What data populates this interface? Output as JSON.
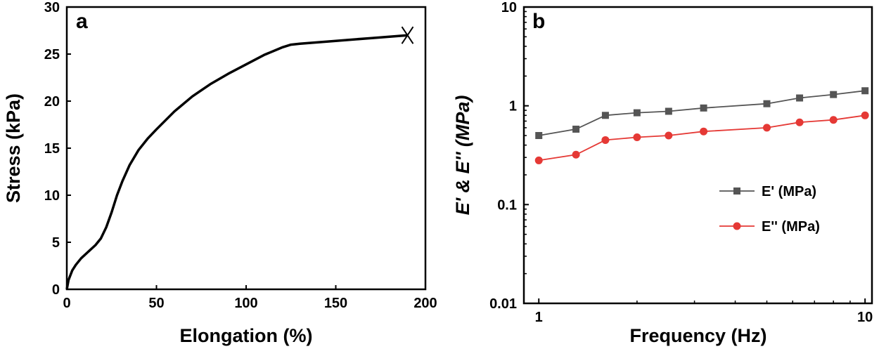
{
  "chart_data": [
    {
      "type": "line",
      "panel_label": "a",
      "xlabel": "Elongation (%)",
      "ylabel": "Stress (kPa)",
      "xlim": [
        0,
        200
      ],
      "ylim": [
        0,
        30
      ],
      "xticks": [
        0,
        50,
        100,
        150,
        200
      ],
      "yticks": [
        0,
        5,
        10,
        15,
        20,
        25,
        30
      ],
      "grid": false,
      "line_color": "#000000",
      "end_marker": "X",
      "series": [
        {
          "x": [
            0,
            1,
            3,
            5,
            8,
            12,
            16,
            19,
            22,
            25,
            28,
            31,
            35,
            40,
            45,
            50,
            60,
            70,
            80,
            90,
            100,
            110,
            120,
            125,
            130,
            150,
            170,
            190
          ],
          "y": [
            0,
            1.0,
            2.0,
            2.6,
            3.3,
            4.0,
            4.7,
            5.4,
            6.6,
            8.2,
            10.0,
            11.5,
            13.2,
            14.8,
            16.0,
            17.0,
            18.9,
            20.5,
            21.8,
            22.9,
            23.9,
            24.9,
            25.7,
            26.0,
            26.1,
            26.4,
            26.7,
            27.0
          ]
        }
      ]
    },
    {
      "type": "line",
      "panel_label": "b",
      "xlabel": "Frequency (Hz)",
      "ylabel": "E' & E'' (MPa)",
      "xscale": "log",
      "yscale": "log",
      "xlim": [
        0.9,
        10.5
      ],
      "ylim": [
        0.01,
        10
      ],
      "xticks": [
        1,
        10
      ],
      "yticks": [
        0.01,
        0.1,
        1,
        10
      ],
      "grid": false,
      "legend_position": "center-right",
      "series": [
        {
          "name": "E' (MPa)",
          "color": "#555555",
          "marker": "square",
          "x": [
            1,
            1.3,
            1.6,
            2,
            2.5,
            3.2,
            5,
            6.3,
            8,
            10
          ],
          "y": [
            0.5,
            0.58,
            0.8,
            0.85,
            0.88,
            0.95,
            1.05,
            1.2,
            1.3,
            1.42
          ]
        },
        {
          "name": "E'' (MPa)",
          "color": "#e53935",
          "marker": "circle",
          "x": [
            1,
            1.3,
            1.6,
            2,
            2.5,
            3.2,
            5,
            6.3,
            8,
            10
          ],
          "y": [
            0.28,
            0.32,
            0.45,
            0.48,
            0.5,
            0.55,
            0.6,
            0.68,
            0.72,
            0.8
          ]
        }
      ]
    }
  ]
}
